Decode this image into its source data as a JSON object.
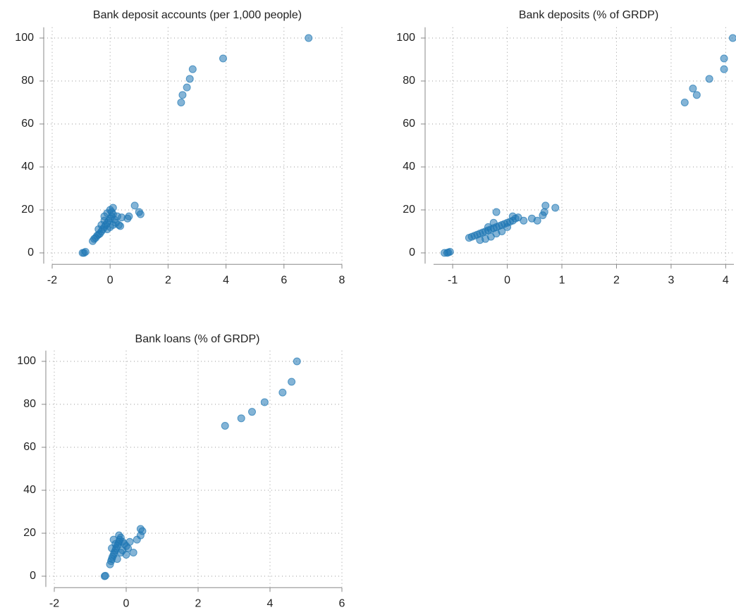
{
  "chart_data": [
    {
      "type": "scatter",
      "title": "Bank deposit accounts (per 1,000 people)",
      "color": "#1f77b4",
      "x": [
        -0.9,
        -0.95,
        -0.85,
        2.45,
        2.5,
        2.65,
        2.75,
        2.85,
        3.9,
        6.85,
        -0.6,
        -0.55,
        -0.5,
        -0.45,
        -0.4,
        -0.35,
        -0.3,
        -0.25,
        -0.2,
        -0.15,
        -0.1,
        -0.05,
        0,
        0.05,
        0.1,
        0.05,
        0,
        0.1,
        -0.2,
        -0.1,
        0,
        0.1,
        0.2,
        0.3,
        0.35,
        0.4,
        0.25,
        -0.3,
        -0.4,
        0.15,
        0.6,
        0.65,
        0.85,
        1.0,
        1.05,
        -0.2,
        -0.1
      ],
      "values": [
        0,
        0,
        0.5,
        70,
        73.5,
        77,
        81,
        85.5,
        90.5,
        100,
        5.5,
        6.5,
        7,
        8,
        8.5,
        9,
        10,
        11,
        12,
        13,
        14,
        15,
        16,
        17,
        18,
        19,
        20,
        21,
        15,
        11,
        12,
        13,
        14,
        13,
        12.5,
        16.5,
        17,
        13,
        11,
        15.5,
        16,
        17,
        22,
        19,
        18,
        17,
        18.5
      ],
      "xlim": [
        -2,
        8
      ],
      "ylim": [
        -5,
        105
      ],
      "xticks": [
        -2,
        0,
        2,
        4,
        6,
        8
      ],
      "yticks": [
        0,
        20,
        40,
        60,
        80,
        100
      ],
      "grid": true
    },
    {
      "type": "scatter",
      "title": "Bank deposits (% of GRDP)",
      "color": "#1f77b4",
      "x": [
        -1.15,
        -1.1,
        -1.05,
        -1.08,
        3.25,
        3.4,
        3.47,
        3.7,
        3.97,
        3.97,
        4.13,
        -0.7,
        -0.65,
        -0.6,
        -0.55,
        -0.5,
        -0.45,
        -0.4,
        -0.35,
        -0.3,
        -0.25,
        -0.2,
        -0.15,
        -0.1,
        -0.05,
        0,
        0.05,
        0.1,
        0.15,
        0.2,
        0.3,
        -0.5,
        -0.4,
        -0.3,
        -0.2,
        -0.1,
        0,
        0.1,
        -0.35,
        -0.25,
        0.45,
        0.55,
        0.65,
        0.68,
        0.7,
        0.88,
        -0.2
      ],
      "values": [
        0,
        0,
        0.5,
        0.2,
        70,
        76.5,
        73.5,
        81,
        85.5,
        90.5,
        100,
        7,
        7.5,
        8,
        8.5,
        9,
        9.5,
        10,
        10.5,
        11,
        11.5,
        12,
        12.5,
        13,
        13.5,
        14,
        14.5,
        15,
        16,
        16.5,
        15,
        6,
        6.5,
        7.5,
        9,
        10,
        12,
        17,
        12,
        14,
        16,
        15,
        17.5,
        19,
        22,
        21,
        19
      ],
      "xlim": [
        -1.35,
        4.15
      ],
      "ylim": [
        -5,
        105
      ],
      "xticks": [
        -1,
        0,
        1,
        2,
        3,
        4
      ],
      "yticks": [
        0,
        20,
        40,
        60,
        80,
        100
      ],
      "grid": true
    },
    {
      "type": "scatter",
      "title": "Bank loans (% of GRDP)",
      "color": "#1f77b4",
      "x": [
        2.75,
        3.2,
        3.5,
        3.85,
        4.35,
        4.6,
        4.75,
        -0.6,
        -0.58,
        -0.45,
        -0.42,
        -0.4,
        -0.38,
        -0.35,
        -0.33,
        -0.3,
        -0.28,
        -0.25,
        -0.22,
        -0.2,
        -0.18,
        -0.15,
        -0.1,
        -0.05,
        0,
        0.05,
        0.1,
        -0.4,
        -0.3,
        -0.2,
        -0.1,
        0,
        -0.35,
        -0.25,
        -0.15,
        0.2,
        0.3,
        0.4,
        0.4,
        0.45
      ],
      "values": [
        70,
        73.5,
        76.5,
        81,
        85.5,
        90.5,
        100,
        0,
        0.2,
        5.5,
        7,
        8,
        9,
        10,
        11,
        12,
        13,
        14,
        15,
        16,
        17,
        18,
        16,
        15,
        14,
        13,
        16,
        13,
        15,
        19,
        12,
        10,
        17,
        8,
        11,
        11,
        17,
        19,
        22,
        21
      ],
      "xlim": [
        -2,
        6
      ],
      "ylim": [
        -5,
        105
      ],
      "xticks": [
        -2,
        0,
        2,
        4,
        6
      ],
      "yticks": [
        0,
        20,
        40,
        60,
        80,
        100
      ],
      "grid": true
    }
  ]
}
